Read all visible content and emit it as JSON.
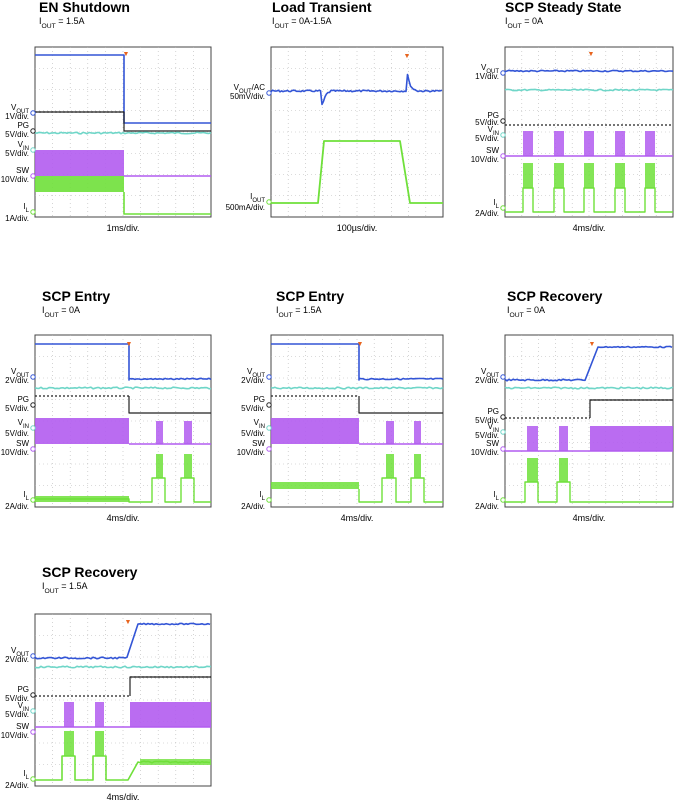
{
  "colors": {
    "vout": "#3355d6",
    "pg": "#222222",
    "vin": "#6fd6c8",
    "sw": "#b25cf0",
    "il": "#6fe03a",
    "trigger": "#e8641e",
    "grid": "#b8b8b8"
  },
  "chart_data": [
    {
      "type": "line",
      "title": "EN Shutdown",
      "subtitle": {
        "main": "I",
        "sub": "OUT",
        "rest": " = 1.5A"
      },
      "xlabel": "1ms/div.",
      "channels": [
        {
          "id": "vout",
          "label": {
            "main": "V",
            "sub": "OUT",
            "rest": ""
          },
          "scale": "1V/div."
        },
        {
          "id": "pg",
          "label": {
            "main": "PG",
            "sub": "",
            "rest": ""
          },
          "scale": "5V/div."
        },
        {
          "id": "vin",
          "label": {
            "main": "V",
            "sub": "IN",
            "rest": ""
          },
          "scale": "5V/div."
        },
        {
          "id": "sw",
          "label": {
            "main": "SW",
            "sub": "",
            "rest": ""
          },
          "scale": "10V/div."
        },
        {
          "id": "il",
          "label": {
            "main": "I",
            "sub": "L",
            "rest": ""
          },
          "scale": "1A/div."
        }
      ]
    },
    {
      "type": "line",
      "title": "Load Transient",
      "subtitle": {
        "main": "I",
        "sub": "OUT",
        "rest": " = 0A-1.5A"
      },
      "xlabel": "100µs/div.",
      "channels": [
        {
          "id": "vout",
          "label": {
            "main": "V",
            "sub": "OUT",
            "rest": "/AC"
          },
          "scale": "50mV/div."
        },
        {
          "id": "il",
          "label": {
            "main": "I",
            "sub": "OUT",
            "rest": ""
          },
          "scale": "500mA/div."
        }
      ]
    },
    {
      "type": "line",
      "title": "SCP Steady State",
      "subtitle": {
        "main": "I",
        "sub": "OUT",
        "rest": " = 0A"
      },
      "xlabel": "4ms/div.",
      "channels": [
        {
          "id": "vout",
          "label": {
            "main": "V",
            "sub": "OUT",
            "rest": ""
          },
          "scale": "1V/div."
        },
        {
          "id": "pg",
          "label": {
            "main": "PG",
            "sub": "",
            "rest": ""
          },
          "scale": "5V/div."
        },
        {
          "id": "vin",
          "label": {
            "main": "V",
            "sub": "IN",
            "rest": ""
          },
          "scale": "5V/div."
        },
        {
          "id": "sw",
          "label": {
            "main": "SW",
            "sub": "",
            "rest": ""
          },
          "scale": "10V/div."
        },
        {
          "id": "il",
          "label": {
            "main": "I",
            "sub": "L",
            "rest": ""
          },
          "scale": "2A/div."
        }
      ]
    },
    {
      "type": "line",
      "title": "SCP Entry",
      "subtitle": {
        "main": "I",
        "sub": "OUT",
        "rest": " = 0A"
      },
      "xlabel": "4ms/div.",
      "channels": [
        {
          "id": "vout",
          "label": {
            "main": "V",
            "sub": "OUT",
            "rest": ""
          },
          "scale": "2V/div."
        },
        {
          "id": "pg",
          "label": {
            "main": "PG",
            "sub": "",
            "rest": ""
          },
          "scale": "5V/div."
        },
        {
          "id": "vin",
          "label": {
            "main": "V",
            "sub": "IN",
            "rest": ""
          },
          "scale": "5V/div."
        },
        {
          "id": "sw",
          "label": {
            "main": "SW",
            "sub": "",
            "rest": ""
          },
          "scale": "10V/div."
        },
        {
          "id": "il",
          "label": {
            "main": "I",
            "sub": "L",
            "rest": ""
          },
          "scale": "2A/div."
        }
      ]
    },
    {
      "type": "line",
      "title": "SCP Entry",
      "subtitle": {
        "main": "I",
        "sub": "OUT",
        "rest": " = 1.5A"
      },
      "xlabel": "4ms/div.",
      "channels": [
        {
          "id": "vout",
          "label": {
            "main": "V",
            "sub": "OUT",
            "rest": ""
          },
          "scale": "2V/div."
        },
        {
          "id": "pg",
          "label": {
            "main": "PG",
            "sub": "",
            "rest": ""
          },
          "scale": "5V/div."
        },
        {
          "id": "vin",
          "label": {
            "main": "V",
            "sub": "IN",
            "rest": ""
          },
          "scale": "5V/div."
        },
        {
          "id": "sw",
          "label": {
            "main": "SW",
            "sub": "",
            "rest": ""
          },
          "scale": "10V/div."
        },
        {
          "id": "il",
          "label": {
            "main": "I",
            "sub": "L",
            "rest": ""
          },
          "scale": "2A/div."
        }
      ]
    },
    {
      "type": "line",
      "title": "SCP Recovery",
      "subtitle": {
        "main": "I",
        "sub": "OUT",
        "rest": " = 0A"
      },
      "xlabel": "4ms/div.",
      "channels": [
        {
          "id": "vout",
          "label": {
            "main": "V",
            "sub": "OUT",
            "rest": ""
          },
          "scale": "2V/div."
        },
        {
          "id": "pg",
          "label": {
            "main": "PG",
            "sub": "",
            "rest": ""
          },
          "scale": "5V/div."
        },
        {
          "id": "vin",
          "label": {
            "main": "V",
            "sub": "IN",
            "rest": ""
          },
          "scale": "5V/div."
        },
        {
          "id": "sw",
          "label": {
            "main": "SW",
            "sub": "",
            "rest": ""
          },
          "scale": "10V/div."
        },
        {
          "id": "il",
          "label": {
            "main": "I",
            "sub": "L",
            "rest": ""
          },
          "scale": "2A/div."
        }
      ]
    },
    {
      "type": "line",
      "title": "SCP Recovery",
      "subtitle": {
        "main": "I",
        "sub": "OUT",
        "rest": " = 1.5A"
      },
      "xlabel": "4ms/div.",
      "channels": [
        {
          "id": "vout",
          "label": {
            "main": "V",
            "sub": "OUT",
            "rest": ""
          },
          "scale": "2V/div."
        },
        {
          "id": "pg",
          "label": {
            "main": "PG",
            "sub": "",
            "rest": ""
          },
          "scale": "5V/div."
        },
        {
          "id": "vin",
          "label": {
            "main": "V",
            "sub": "IN",
            "rest": ""
          },
          "scale": "5V/div."
        },
        {
          "id": "sw",
          "label": {
            "main": "SW",
            "sub": "",
            "rest": ""
          },
          "scale": "10V/div."
        },
        {
          "id": "il",
          "label": {
            "main": "I",
            "sub": "L",
            "rest": ""
          },
          "scale": "2A/div."
        }
      ]
    }
  ]
}
